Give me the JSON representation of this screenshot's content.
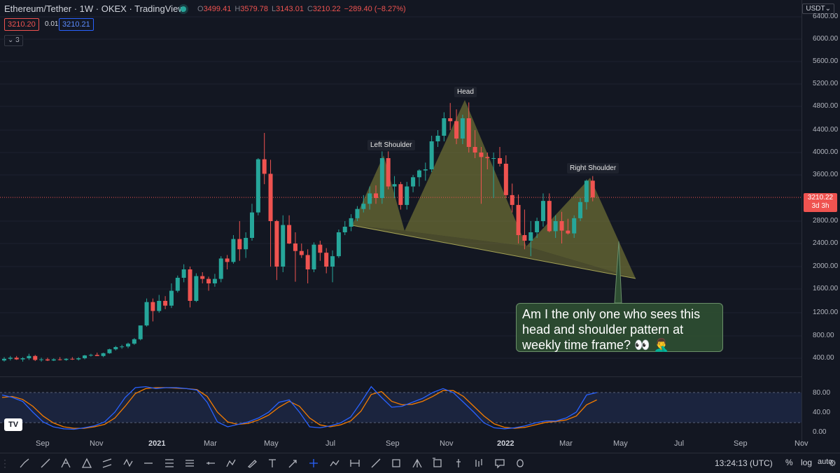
{
  "header": {
    "title": "Ethereum/Tether · 1W · OKEX · TradingView",
    "ohlc": [
      {
        "k": "O",
        "v": "3499.41"
      },
      {
        "k": "H",
        "v": "3579.78"
      },
      {
        "k": "L",
        "v": "3143.01"
      },
      {
        "k": "C",
        "v": "3210.22"
      }
    ],
    "change": "−289.40 (−8.27%)",
    "sell_price": "3210.20",
    "spread": "0.01",
    "buy_price": "3210.21",
    "indicator_toggle": "3",
    "currency": "USDT"
  },
  "price_axis": [
    "6400.00",
    "6000.00",
    "5600.00",
    "5200.00",
    "4800.00",
    "4400.00",
    "4000.00",
    "3600.00",
    "2800.00",
    "2400.00",
    "2000.00",
    "1600.00",
    "1200.00",
    "800.00",
    "400.00"
  ],
  "current_price": {
    "price": "3210.22",
    "countdown": "3d 3h"
  },
  "osc_axis": [
    "80.00",
    "40.00",
    "0.00"
  ],
  "time_axis": [
    {
      "label": "Sep",
      "bold": false
    },
    {
      "label": "Nov",
      "bold": false
    },
    {
      "label": "2021",
      "bold": true
    },
    {
      "label": "Mar",
      "bold": false
    },
    {
      "label": "May",
      "bold": false
    },
    {
      "label": "Jul",
      "bold": false
    },
    {
      "label": "Sep",
      "bold": false
    },
    {
      "label": "Nov",
      "bold": false
    },
    {
      "label": "2022",
      "bold": true
    },
    {
      "label": "Mar",
      "bold": false
    },
    {
      "label": "May",
      "bold": false
    },
    {
      "label": "Jul",
      "bold": false
    },
    {
      "label": "Sep",
      "bold": false
    },
    {
      "label": "Nov",
      "bold": false
    }
  ],
  "annotations": {
    "left_shoulder": "Left Shoulder",
    "head": "Head",
    "right_shoulder": "Right Shoulder",
    "callout": "Am I the only one who sees this head and shoulder pattern at weekly time frame? 👀 🤦‍♂️"
  },
  "bottom_bar": {
    "time": "13:24:13 (UTC)",
    "percent": "%",
    "log": "log",
    "auto": "auto"
  },
  "logo_text": "TV",
  "colors": {
    "up": "#26a69a",
    "down": "#ef5350",
    "pattern_fill": "#8b8a3a",
    "k_line": "#2962ff",
    "d_line": "#f57c00"
  },
  "tools": [
    "trend-line-icon",
    "ray-icon",
    "pitchfork-icon",
    "triangle-icon",
    "parallel-channel-icon",
    "xabcd-icon",
    "horizontal-line-icon",
    "fib-icon",
    "gann-icon",
    "horizontal-ray-icon",
    "polyline-icon",
    "brush-icon",
    "text-icon",
    "arrow-icon",
    "crosshair-icon",
    "path-icon",
    "range-icon",
    "line-icon",
    "box-icon",
    "triangle-pattern-icon",
    "rectangle-icon",
    "long-position-icon",
    "bars-pattern-icon",
    "callout-icon",
    "ellipse-icon"
  ],
  "chart_data": {
    "type": "candlestick",
    "title": "Ethereum/Tether · 1W · OKEX · TradingView",
    "timeframe": "1W",
    "ylim": [
      0,
      6600
    ],
    "candles": [
      {
        "x": 0,
        "o": 360,
        "h": 420,
        "l": 340,
        "c": 390
      },
      {
        "x": 1,
        "o": 390,
        "h": 440,
        "l": 360,
        "c": 410
      },
      {
        "x": 2,
        "o": 410,
        "h": 440,
        "l": 370,
        "c": 380
      },
      {
        "x": 3,
        "o": 380,
        "h": 420,
        "l": 340,
        "c": 400
      },
      {
        "x": 4,
        "o": 400,
        "h": 480,
        "l": 370,
        "c": 440
      },
      {
        "x": 5,
        "o": 440,
        "h": 460,
        "l": 350,
        "c": 370
      },
      {
        "x": 6,
        "o": 370,
        "h": 410,
        "l": 340,
        "c": 380
      },
      {
        "x": 7,
        "o": 380,
        "h": 410,
        "l": 350,
        "c": 360
      },
      {
        "x": 8,
        "o": 360,
        "h": 400,
        "l": 350,
        "c": 380
      },
      {
        "x": 9,
        "o": 380,
        "h": 420,
        "l": 360,
        "c": 370
      },
      {
        "x": 10,
        "o": 370,
        "h": 400,
        "l": 355,
        "c": 390
      },
      {
        "x": 11,
        "o": 390,
        "h": 420,
        "l": 370,
        "c": 380
      },
      {
        "x": 12,
        "o": 380,
        "h": 420,
        "l": 360,
        "c": 400
      },
      {
        "x": 13,
        "o": 400,
        "h": 460,
        "l": 380,
        "c": 450
      },
      {
        "x": 14,
        "o": 450,
        "h": 480,
        "l": 430,
        "c": 460
      },
      {
        "x": 15,
        "o": 460,
        "h": 500,
        "l": 440,
        "c": 440
      },
      {
        "x": 16,
        "o": 440,
        "h": 500,
        "l": 420,
        "c": 490
      },
      {
        "x": 17,
        "o": 490,
        "h": 570,
        "l": 480,
        "c": 560
      },
      {
        "x": 18,
        "o": 560,
        "h": 620,
        "l": 540,
        "c": 600
      },
      {
        "x": 19,
        "o": 600,
        "h": 640,
        "l": 570,
        "c": 610
      },
      {
        "x": 20,
        "o": 610,
        "h": 680,
        "l": 580,
        "c": 660
      },
      {
        "x": 21,
        "o": 660,
        "h": 760,
        "l": 640,
        "c": 740
      },
      {
        "x": 22,
        "o": 740,
        "h": 960,
        "l": 720,
        "c": 980
      },
      {
        "x": 23,
        "o": 980,
        "h": 1440,
        "l": 960,
        "c": 1380
      },
      {
        "x": 24,
        "o": 1380,
        "h": 1440,
        "l": 1050,
        "c": 1230
      },
      {
        "x": 25,
        "o": 1230,
        "h": 1500,
        "l": 1200,
        "c": 1400
      },
      {
        "x": 26,
        "o": 1400,
        "h": 1480,
        "l": 1260,
        "c": 1320
      },
      {
        "x": 27,
        "o": 1320,
        "h": 1700,
        "l": 1280,
        "c": 1570
      },
      {
        "x": 28,
        "o": 1570,
        "h": 1840,
        "l": 1540,
        "c": 1800
      },
      {
        "x": 29,
        "o": 1800,
        "h": 2040,
        "l": 1720,
        "c": 1950
      },
      {
        "x": 30,
        "o": 1950,
        "h": 2000,
        "l": 1290,
        "c": 1400
      },
      {
        "x": 31,
        "o": 1400,
        "h": 1880,
        "l": 1380,
        "c": 1830
      },
      {
        "x": 32,
        "o": 1830,
        "h": 1900,
        "l": 1700,
        "c": 1780
      },
      {
        "x": 33,
        "o": 1780,
        "h": 1820,
        "l": 1570,
        "c": 1700
      },
      {
        "x": 34,
        "o": 1700,
        "h": 1870,
        "l": 1640,
        "c": 1780
      },
      {
        "x": 35,
        "o": 1780,
        "h": 2180,
        "l": 1720,
        "c": 2140
      },
      {
        "x": 36,
        "o": 2140,
        "h": 2200,
        "l": 1950,
        "c": 2080
      },
      {
        "x": 37,
        "o": 2080,
        "h": 2550,
        "l": 2050,
        "c": 2480
      },
      {
        "x": 38,
        "o": 2480,
        "h": 2800,
        "l": 2100,
        "c": 2300
      },
      {
        "x": 39,
        "o": 2300,
        "h": 2600,
        "l": 2150,
        "c": 2500
      },
      {
        "x": 40,
        "o": 2500,
        "h": 3100,
        "l": 2450,
        "c": 2950
      },
      {
        "x": 41,
        "o": 2950,
        "h": 3900,
        "l": 2900,
        "c": 3880
      },
      {
        "x": 42,
        "o": 3880,
        "h": 4350,
        "l": 3440,
        "c": 3620
      },
      {
        "x": 43,
        "o": 3620,
        "h": 3870,
        "l": 2000,
        "c": 2800
      },
      {
        "x": 44,
        "o": 2800,
        "h": 2820,
        "l": 1760,
        "c": 2000
      },
      {
        "x": 45,
        "o": 2000,
        "h": 2900,
        "l": 1900,
        "c": 2730
      },
      {
        "x": 46,
        "o": 2730,
        "h": 2900,
        "l": 2390,
        "c": 2400
      },
      {
        "x": 47,
        "o": 2400,
        "h": 2600,
        "l": 1730,
        "c": 2270
      },
      {
        "x": 48,
        "o": 2270,
        "h": 2400,
        "l": 2150,
        "c": 2200
      },
      {
        "x": 49,
        "o": 2200,
        "h": 2300,
        "l": 1700,
        "c": 1950
      },
      {
        "x": 50,
        "o": 1950,
        "h": 2420,
        "l": 1900,
        "c": 2380
      },
      {
        "x": 51,
        "o": 2380,
        "h": 2450,
        "l": 2100,
        "c": 2240
      },
      {
        "x": 52,
        "o": 2240,
        "h": 2320,
        "l": 1880,
        "c": 2000
      },
      {
        "x": 53,
        "o": 2000,
        "h": 2280,
        "l": 1720,
        "c": 2180
      },
      {
        "x": 54,
        "o": 2180,
        "h": 2650,
        "l": 2150,
        "c": 2600
      },
      {
        "x": 55,
        "o": 2600,
        "h": 2800,
        "l": 2550,
        "c": 2700
      },
      {
        "x": 56,
        "o": 2700,
        "h": 2920,
        "l": 2620,
        "c": 2850
      },
      {
        "x": 57,
        "o": 2850,
        "h": 3060,
        "l": 2800,
        "c": 3010
      },
      {
        "x": 58,
        "o": 3010,
        "h": 3250,
        "l": 2950,
        "c": 3100
      },
      {
        "x": 59,
        "o": 3100,
        "h": 3400,
        "l": 3000,
        "c": 3280
      },
      {
        "x": 60,
        "o": 3280,
        "h": 3420,
        "l": 3100,
        "c": 3200
      },
      {
        "x": 61,
        "o": 3200,
        "h": 4020,
        "l": 3100,
        "c": 3900
      },
      {
        "x": 62,
        "o": 3900,
        "h": 4020,
        "l": 3350,
        "c": 3400
      },
      {
        "x": 63,
        "o": 3400,
        "h": 3580,
        "l": 3200,
        "c": 3440
      },
      {
        "x": 64,
        "o": 3440,
        "h": 3480,
        "l": 3000,
        "c": 3080
      },
      {
        "x": 65,
        "o": 3080,
        "h": 3480,
        "l": 3000,
        "c": 3400
      },
      {
        "x": 66,
        "o": 3400,
        "h": 3600,
        "l": 3300,
        "c": 3560
      },
      {
        "x": 67,
        "o": 3560,
        "h": 3700,
        "l": 3400,
        "c": 3680
      },
      {
        "x": 68,
        "o": 3680,
        "h": 3820,
        "l": 3500,
        "c": 3700
      },
      {
        "x": 69,
        "o": 3700,
        "h": 4300,
        "l": 3650,
        "c": 4200
      },
      {
        "x": 70,
        "o": 4200,
        "h": 4400,
        "l": 4100,
        "c": 4300
      },
      {
        "x": 71,
        "o": 4300,
        "h": 4700,
        "l": 4200,
        "c": 4600
      },
      {
        "x": 72,
        "o": 4600,
        "h": 4860,
        "l": 4400,
        "c": 4550
      },
      {
        "x": 73,
        "o": 4550,
        "h": 4750,
        "l": 4150,
        "c": 4250
      },
      {
        "x": 74,
        "o": 4250,
        "h": 4660,
        "l": 4150,
        "c": 4600
      },
      {
        "x": 75,
        "o": 4600,
        "h": 4870,
        "l": 4000,
        "c": 4100
      },
      {
        "x": 76,
        "o": 4100,
        "h": 4400,
        "l": 3900,
        "c": 4000
      },
      {
        "x": 77,
        "o": 4000,
        "h": 4100,
        "l": 3100,
        "c": 3920
      },
      {
        "x": 78,
        "o": 3920,
        "h": 4000,
        "l": 3700,
        "c": 3900
      },
      {
        "x": 79,
        "o": 3900,
        "h": 4000,
        "l": 3200,
        "c": 3900
      },
      {
        "x": 80,
        "o": 3900,
        "h": 4100,
        "l": 3750,
        "c": 3800
      },
      {
        "x": 81,
        "o": 3800,
        "h": 3950,
        "l": 3200,
        "c": 3250
      },
      {
        "x": 82,
        "o": 3250,
        "h": 3450,
        "l": 2950,
        "c": 3080
      },
      {
        "x": 83,
        "o": 3080,
        "h": 3260,
        "l": 2400,
        "c": 2550
      },
      {
        "x": 84,
        "o": 2550,
        "h": 3000,
        "l": 2300,
        "c": 2450
      },
      {
        "x": 85,
        "o": 2450,
        "h": 2800,
        "l": 2180,
        "c": 2600
      },
      {
        "x": 86,
        "o": 2600,
        "h": 2860,
        "l": 2500,
        "c": 2800
      },
      {
        "x": 87,
        "o": 2800,
        "h": 3280,
        "l": 2700,
        "c": 3150
      },
      {
        "x": 88,
        "o": 3150,
        "h": 3280,
        "l": 2600,
        "c": 2620
      },
      {
        "x": 89,
        "o": 2620,
        "h": 2900,
        "l": 2500,
        "c": 2800
      },
      {
        "x": 90,
        "o": 2800,
        "h": 2960,
        "l": 2400,
        "c": 2630
      },
      {
        "x": 91,
        "o": 2630,
        "h": 2840,
        "l": 2560,
        "c": 2580
      },
      {
        "x": 92,
        "o": 2580,
        "h": 2900,
        "l": 2500,
        "c": 2850
      },
      {
        "x": 93,
        "o": 2850,
        "h": 3200,
        "l": 2800,
        "c": 3130
      },
      {
        "x": 94,
        "o": 3130,
        "h": 3520,
        "l": 3000,
        "c": 3500
      },
      {
        "x": 95,
        "o": 3500,
        "h": 3580,
        "l": 3143,
        "c": 3210
      }
    ],
    "stochastic": {
      "k": [
        75,
        70,
        62,
        40,
        20,
        10,
        6,
        5,
        8,
        12,
        20,
        40,
        70,
        90,
        92,
        88,
        90,
        90,
        88,
        85,
        60,
        20,
        10,
        15,
        20,
        28,
        40,
        60,
        65,
        40,
        10,
        8,
        12,
        18,
        30,
        60,
        92,
        70,
        50,
        52,
        60,
        68,
        80,
        88,
        80,
        60,
        40,
        18,
        8,
        6,
        8,
        12,
        18,
        22,
        22,
        28,
        40,
        75,
        80
      ],
      "d": [
        70,
        72,
        66,
        52,
        32,
        18,
        10,
        7,
        7,
        10,
        15,
        28,
        52,
        78,
        88,
        90,
        90,
        89,
        88,
        86,
        72,
        40,
        20,
        15,
        17,
        24,
        34,
        50,
        62,
        52,
        28,
        14,
        10,
        14,
        22,
        42,
        76,
        82,
        62,
        55,
        56,
        62,
        72,
        84,
        84,
        72,
        52,
        32,
        16,
        9,
        7,
        9,
        14,
        19,
        21,
        24,
        32,
        55,
        65
      ]
    }
  }
}
